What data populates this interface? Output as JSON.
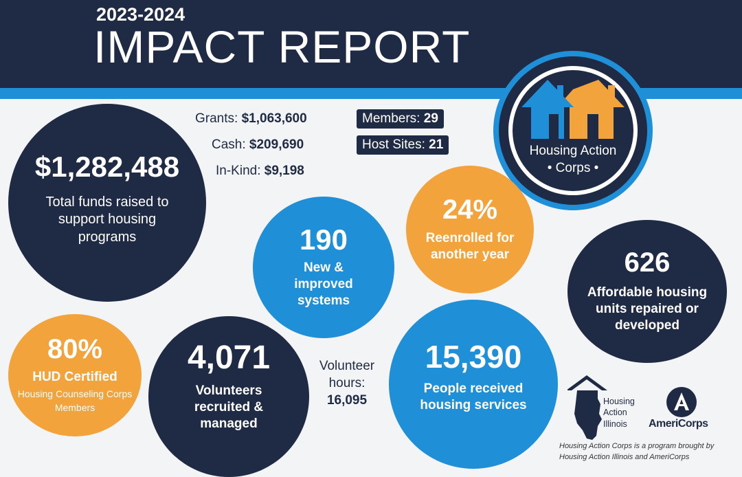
{
  "header": {
    "year": "2023-2024",
    "title": "IMPACT REPORT"
  },
  "funds": {
    "total": "$1,282,488",
    "total_label": "Total funds raised to support housing programs",
    "grants_label": "Grants:",
    "grants_value": "$1,063,600",
    "cash_label": "Cash:",
    "cash_value": "$209,690",
    "inkind_label": "In-Kind:",
    "inkind_value": "$9,198"
  },
  "tags": {
    "members_label": "Members:",
    "members_value": "29",
    "hosts_label": "Host Sites:",
    "hosts_value": "21"
  },
  "logo": {
    "line1": "Housing Action",
    "line2": "• Corps •"
  },
  "stats": {
    "systems_value": "190",
    "systems_label": "New & improved systems",
    "reenrolled_value": "24%",
    "reenrolled_label": "Reenrolled for another year",
    "units_value": "626",
    "units_label": "Affordable housing units repaired or developed",
    "hud_value": "80%",
    "hud_label": "HUD Certified",
    "hud_sublabel": "Housing Counseling Corps Members",
    "volunteers_value": "4,071",
    "volunteers_label": "Volunteers recruited & managed",
    "people_value": "15,390",
    "people_label": "People received housing services"
  },
  "volunteer_hours": {
    "label": "Volunteer hours:",
    "value": "16,095"
  },
  "partners": {
    "ila_name": "Housing Action Illinois",
    "ila_line1": "Housing",
    "ila_line2": "Action",
    "ila_line3": "Illinois",
    "americorps": "AmeriCorps"
  },
  "footnote": "Housing Action Corps is a program brought by Housing Action Illinois and AmeriCorps",
  "colors": {
    "navy": "#1f2a44",
    "blue": "#1f8fd8",
    "orange": "#f2a33c"
  },
  "icons": [
    "house-orange-icon",
    "house-blue-icon",
    "illinois-house-icon",
    "americorps-icon"
  ]
}
